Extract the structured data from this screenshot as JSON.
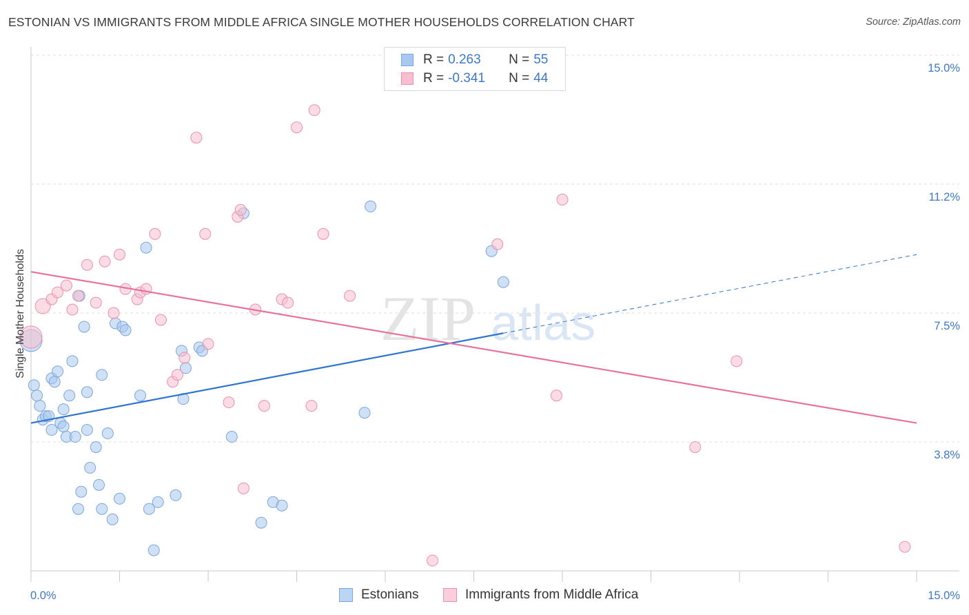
{
  "header": {
    "title": "ESTONIAN VS IMMIGRANTS FROM MIDDLE AFRICA SINGLE MOTHER HOUSEHOLDS CORRELATION CHART",
    "source": "Source: ZipAtlas.com"
  },
  "watermark": {
    "zip": "ZIP",
    "atlas": "atlas"
  },
  "legend": {
    "rows": [
      {
        "r_label": "R = ",
        "r_value": "0.263",
        "n_label": "N = ",
        "n_value": "55",
        "color": "#a9c8ef",
        "border": "#7aa6dc"
      },
      {
        "r_label": "R = ",
        "r_value": "-0.341",
        "n_label": "N = ",
        "n_value": "44",
        "color": "#f7bfd0",
        "border": "#ec8fae"
      }
    ]
  },
  "bottom_legend": {
    "estonians": "Estonians",
    "immigrants": "Immigrants from Middle Africa"
  },
  "chart_data": {
    "type": "scatter",
    "title": "ESTONIAN VS IMMIGRANTS FROM MIDDLE AFRICA SINGLE MOTHER HOUSEHOLDS CORRELATION CHART",
    "xlabel": "",
    "ylabel": "Single Mother Households",
    "xlim": [
      0,
      15
    ],
    "ylim": [
      0,
      15
    ],
    "x_tick_labels": [
      "0.0%",
      "15.0%"
    ],
    "y_tick_labels": [
      "15.0%",
      "11.2%",
      "7.5%",
      "3.8%"
    ],
    "y_ticks": [
      15.0,
      11.25,
      7.5,
      3.75
    ],
    "grid": true,
    "legend_position": "top-center",
    "series": [
      {
        "name": "Estonians",
        "color": "#7aa6dc",
        "fill": "#a9c8ef",
        "trend_color": "#2f74d0",
        "trend": {
          "x": [
            0,
            15
          ],
          "y": [
            4.3,
            9.2
          ],
          "solid_until_x": 8.0
        },
        "points": [
          {
            "x": 0.0,
            "y": 6.7,
            "big": true
          },
          {
            "x": 0.05,
            "y": 5.4
          },
          {
            "x": 0.1,
            "y": 5.1
          },
          {
            "x": 0.15,
            "y": 4.8
          },
          {
            "x": 0.2,
            "y": 4.4
          },
          {
            "x": 0.25,
            "y": 4.5
          },
          {
            "x": 0.3,
            "y": 4.5
          },
          {
            "x": 0.35,
            "y": 5.6
          },
          {
            "x": 0.35,
            "y": 4.1
          },
          {
            "x": 0.4,
            "y": 5.5
          },
          {
            "x": 0.45,
            "y": 5.8
          },
          {
            "x": 0.5,
            "y": 4.3
          },
          {
            "x": 0.55,
            "y": 4.2
          },
          {
            "x": 0.55,
            "y": 4.7
          },
          {
            "x": 0.6,
            "y": 3.9
          },
          {
            "x": 0.65,
            "y": 5.1
          },
          {
            "x": 0.7,
            "y": 6.1
          },
          {
            "x": 0.75,
            "y": 3.9
          },
          {
            "x": 0.8,
            "y": 1.8
          },
          {
            "x": 0.82,
            "y": 8.0
          },
          {
            "x": 0.85,
            "y": 2.3
          },
          {
            "x": 0.9,
            "y": 7.1
          },
          {
            "x": 0.95,
            "y": 4.1
          },
          {
            "x": 0.95,
            "y": 5.2
          },
          {
            "x": 1.0,
            "y": 3.0
          },
          {
            "x": 1.1,
            "y": 3.6
          },
          {
            "x": 1.15,
            "y": 2.5
          },
          {
            "x": 1.2,
            "y": 5.7
          },
          {
            "x": 1.2,
            "y": 1.8
          },
          {
            "x": 1.3,
            "y": 4.0
          },
          {
            "x": 1.38,
            "y": 1.5
          },
          {
            "x": 1.43,
            "y": 7.2
          },
          {
            "x": 1.5,
            "y": 2.1
          },
          {
            "x": 1.55,
            "y": 7.1
          },
          {
            "x": 1.6,
            "y": 7.0
          },
          {
            "x": 1.85,
            "y": 5.1
          },
          {
            "x": 1.95,
            "y": 9.4
          },
          {
            "x": 2.0,
            "y": 1.8
          },
          {
            "x": 2.08,
            "y": 0.6
          },
          {
            "x": 2.15,
            "y": 2.0
          },
          {
            "x": 2.45,
            "y": 2.2
          },
          {
            "x": 2.55,
            "y": 6.4
          },
          {
            "x": 2.58,
            "y": 5.0
          },
          {
            "x": 2.62,
            "y": 5.9
          },
          {
            "x": 2.85,
            "y": 6.5
          },
          {
            "x": 2.9,
            "y": 6.4
          },
          {
            "x": 3.4,
            "y": 3.9
          },
          {
            "x": 3.6,
            "y": 10.4
          },
          {
            "x": 3.9,
            "y": 1.4
          },
          {
            "x": 4.1,
            "y": 2.0
          },
          {
            "x": 4.25,
            "y": 1.9
          },
          {
            "x": 5.65,
            "y": 4.6
          },
          {
            "x": 5.75,
            "y": 10.6
          },
          {
            "x": 7.8,
            "y": 9.3
          },
          {
            "x": 8.0,
            "y": 8.4
          }
        ]
      },
      {
        "name": "Immigrants from Middle Africa",
        "color": "#ec8fae",
        "fill": "#f7bfd0",
        "trend_color": "#e8729a",
        "trend": {
          "x": [
            0,
            15
          ],
          "y": [
            8.7,
            4.3
          ]
        },
        "points": [
          {
            "x": 0.0,
            "y": 6.8,
            "big": true
          },
          {
            "x": 0.2,
            "y": 7.7,
            "big2": true
          },
          {
            "x": 0.35,
            "y": 7.9
          },
          {
            "x": 0.45,
            "y": 8.1
          },
          {
            "x": 0.6,
            "y": 8.3
          },
          {
            "x": 0.7,
            "y": 7.6
          },
          {
            "x": 0.8,
            "y": 8.0
          },
          {
            "x": 0.95,
            "y": 8.9
          },
          {
            "x": 1.1,
            "y": 7.8
          },
          {
            "x": 1.25,
            "y": 9.0
          },
          {
            "x": 1.4,
            "y": 7.5
          },
          {
            "x": 1.5,
            "y": 9.2
          },
          {
            "x": 1.6,
            "y": 8.2
          },
          {
            "x": 1.8,
            "y": 7.9
          },
          {
            "x": 1.85,
            "y": 8.1
          },
          {
            "x": 1.95,
            "y": 8.2
          },
          {
            "x": 2.1,
            "y": 9.8
          },
          {
            "x": 2.2,
            "y": 7.3
          },
          {
            "x": 2.4,
            "y": 5.5
          },
          {
            "x": 2.48,
            "y": 5.7
          },
          {
            "x": 2.6,
            "y": 6.2
          },
          {
            "x": 2.8,
            "y": 12.6
          },
          {
            "x": 2.95,
            "y": 9.8
          },
          {
            "x": 3.0,
            "y": 6.6
          },
          {
            "x": 3.35,
            "y": 4.9
          },
          {
            "x": 3.5,
            "y": 10.3
          },
          {
            "x": 3.55,
            "y": 10.5
          },
          {
            "x": 3.6,
            "y": 2.4
          },
          {
            "x": 3.8,
            "y": 7.6
          },
          {
            "x": 3.95,
            "y": 4.8
          },
          {
            "x": 4.25,
            "y": 7.9
          },
          {
            "x": 4.35,
            "y": 7.8
          },
          {
            "x": 4.5,
            "y": 12.9
          },
          {
            "x": 4.8,
            "y": 13.4
          },
          {
            "x": 4.75,
            "y": 4.8
          },
          {
            "x": 4.95,
            "y": 9.8
          },
          {
            "x": 5.4,
            "y": 8.0
          },
          {
            "x": 6.8,
            "y": 0.3
          },
          {
            "x": 7.9,
            "y": 9.5
          },
          {
            "x": 8.9,
            "y": 5.1
          },
          {
            "x": 9.0,
            "y": 10.8
          },
          {
            "x": 11.25,
            "y": 3.6
          },
          {
            "x": 11.95,
            "y": 6.1
          },
          {
            "x": 14.8,
            "y": 0.7
          }
        ]
      }
    ]
  }
}
